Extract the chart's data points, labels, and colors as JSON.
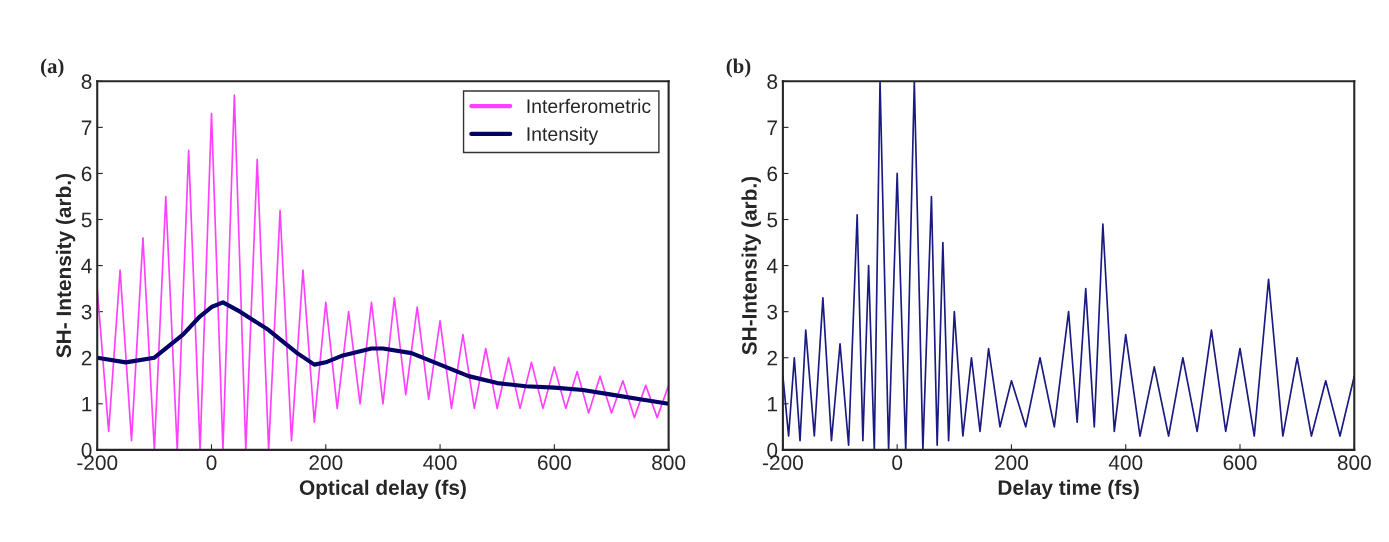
{
  "chart_data": [
    {
      "type": "line",
      "title": "(a)",
      "xlabel": "Optical delay (fs)",
      "ylabel": "SH- Intensity (arb.)",
      "xlim": [
        -200,
        800
      ],
      "xticks": [
        -200,
        0,
        200,
        400,
        600,
        800
      ],
      "ylim": [
        0,
        8
      ],
      "yticks": [
        0,
        1,
        2,
        3,
        4,
        5,
        6,
        7,
        8
      ],
      "grid": false,
      "legend": "top right",
      "marker": "none",
      "line_style": "solid",
      "series": [
        {
          "name": "Interferometric",
          "color": "#ff40ff",
          "x": [
            -200,
            -180,
            -160,
            -140,
            -120,
            -100,
            -80,
            -60,
            -40,
            -20,
            0,
            20,
            40,
            60,
            80,
            100,
            120,
            140,
            160,
            180,
            200,
            220,
            240,
            260,
            280,
            300,
            320,
            340,
            360,
            380,
            400,
            420,
            440,
            460,
            480,
            500,
            520,
            540,
            560,
            580,
            600,
            620,
            640,
            660,
            680,
            700,
            720,
            740,
            760,
            780,
            800
          ],
          "values": [
            3.5,
            0.4,
            3.9,
            0.2,
            4.6,
            0,
            5.5,
            0,
            6.5,
            0,
            7.3,
            0,
            7.7,
            0,
            6.3,
            0,
            5.2,
            0.2,
            3.9,
            0.6,
            3.2,
            0.9,
            3.0,
            1.0,
            3.2,
            1.0,
            3.3,
            1.2,
            3.1,
            1.1,
            2.8,
            0.9,
            2.5,
            0.9,
            2.2,
            0.9,
            2.0,
            0.9,
            1.9,
            0.9,
            1.8,
            0.9,
            1.7,
            0.8,
            1.6,
            0.8,
            1.5,
            0.7,
            1.4,
            0.7,
            1.4
          ]
        },
        {
          "name": "Intensity",
          "color": "#000066",
          "x": [
            -200,
            -150,
            -100,
            -50,
            -20,
            0,
            20,
            50,
            100,
            150,
            180,
            200,
            230,
            280,
            300,
            350,
            400,
            450,
            500,
            550,
            600,
            650,
            700,
            750,
            800
          ],
          "values": [
            2.0,
            1.9,
            2.0,
            2.5,
            2.9,
            3.1,
            3.2,
            3.0,
            2.6,
            2.1,
            1.85,
            1.9,
            2.05,
            2.2,
            2.2,
            2.1,
            1.85,
            1.6,
            1.45,
            1.38,
            1.35,
            1.3,
            1.2,
            1.1,
            1.0
          ]
        }
      ]
    },
    {
      "type": "line",
      "title": "(b)",
      "xlabel": "Delay time (fs)",
      "ylabel": "SH-Intensity (arb.)",
      "xlim": [
        -200,
        800
      ],
      "xticks": [
        -200,
        0,
        200,
        400,
        600,
        800
      ],
      "ylim": [
        0,
        8
      ],
      "yticks": [
        0,
        1,
        2,
        3,
        4,
        5,
        6,
        7,
        8
      ],
      "grid": false,
      "legend": false,
      "marker": "none",
      "line_style": "solid",
      "series": [
        {
          "color": "#1a1a80",
          "x": [
            -200,
            -190,
            -180,
            -170,
            -160,
            -145,
            -130,
            -115,
            -100,
            -85,
            -70,
            -60,
            -50,
            -40,
            -30,
            -15,
            0,
            15,
            30,
            45,
            60,
            70,
            80,
            90,
            100,
            115,
            130,
            145,
            160,
            180,
            200,
            225,
            250,
            275,
            300,
            315,
            330,
            345,
            360,
            380,
            400,
            425,
            450,
            475,
            500,
            525,
            550,
            575,
            600,
            625,
            650,
            675,
            700,
            725,
            750,
            775,
            800
          ],
          "values": [
            1.6,
            0.3,
            2.0,
            0.2,
            2.6,
            0.3,
            3.3,
            0.2,
            2.3,
            0.1,
            5.1,
            0.2,
            4.0,
            0,
            8.0,
            0,
            6.0,
            0,
            8.0,
            0,
            5.5,
            0.1,
            4.5,
            0.2,
            3.0,
            0.3,
            2.0,
            0.4,
            2.2,
            0.5,
            1.5,
            0.5,
            2.0,
            0.5,
            3.0,
            0.6,
            3.5,
            0.5,
            4.9,
            0.4,
            2.5,
            0.3,
            1.8,
            0.3,
            2.0,
            0.4,
            2.6,
            0.4,
            2.2,
            0.3,
            3.7,
            0.3,
            2.0,
            0.3,
            1.5,
            0.3,
            1.6
          ]
        }
      ]
    }
  ]
}
